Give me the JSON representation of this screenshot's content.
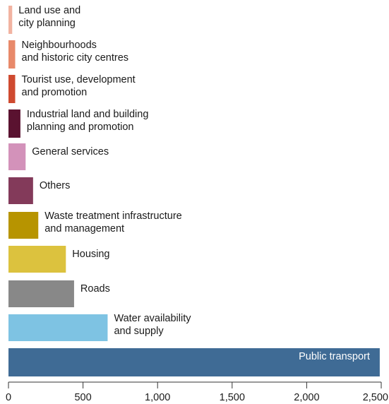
{
  "chart_data": {
    "type": "bar",
    "orientation": "horizontal",
    "title": "",
    "xlabel": "",
    "ylabel": "",
    "xlim": [
      0,
      2500
    ],
    "x_ticks": [
      0,
      500,
      1000,
      1500,
      2000,
      2500
    ],
    "x_tick_labels": [
      "0",
      "500",
      "1,000",
      "1,500",
      "2,000",
      "2,500"
    ],
    "grid": false,
    "legend": "none",
    "bars": [
      {
        "label": [
          "Land use and",
          "city planning"
        ],
        "value": 25,
        "color": "#f2b3a1"
      },
      {
        "label": [
          "Neighbourhoods",
          "and historic city centres"
        ],
        "value": 45,
        "color": "#e8896a"
      },
      {
        "label": [
          "Tourist use, development",
          "and promotion"
        ],
        "value": 45,
        "color": "#cf4a30"
      },
      {
        "label": [
          "Industrial land and building",
          "planning and promotion"
        ],
        "value": 80,
        "color": "#5a1230"
      },
      {
        "label": [
          "General services"
        ],
        "value": 115,
        "color": "#d392ba"
      },
      {
        "label": [
          "Others"
        ],
        "value": 165,
        "color": "#833a5a"
      },
      {
        "label": [
          "Waste treatment infrastructure",
          "and management"
        ],
        "value": 200,
        "color": "#b79400"
      },
      {
        "label": [
          "Housing"
        ],
        "value": 385,
        "color": "#dcc23e"
      },
      {
        "label": [
          "Roads"
        ],
        "value": 440,
        "color": "#888888"
      },
      {
        "label": [
          "Water availability",
          "and supply"
        ],
        "value": 665,
        "color": "#7ec3e3"
      },
      {
        "label": [
          "Public transport"
        ],
        "value": 2490,
        "color": "#3f6b95",
        "label_inside": true
      }
    ]
  }
}
